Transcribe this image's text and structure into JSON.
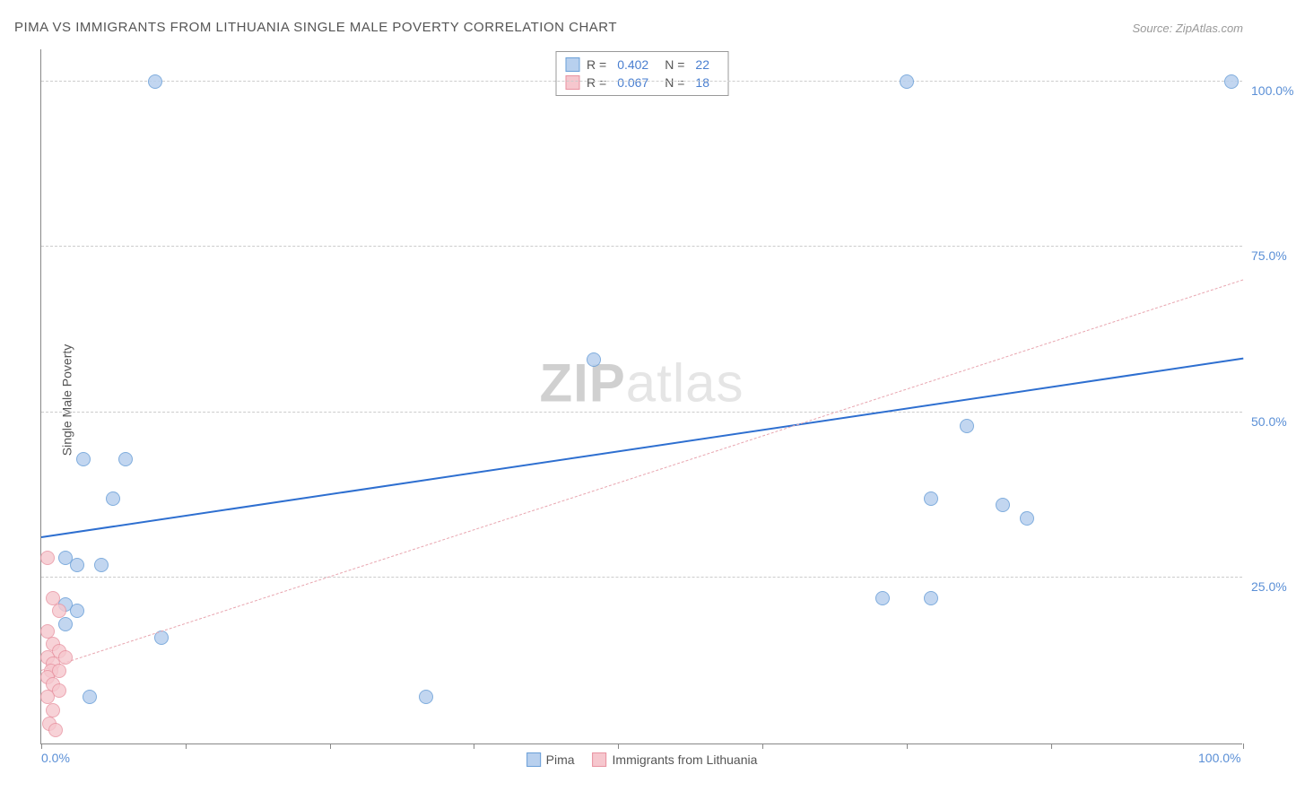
{
  "chart": {
    "type": "scatter",
    "title": "PIMA VS IMMIGRANTS FROM LITHUANIA SINGLE MALE POVERTY CORRELATION CHART",
    "source": "Source: ZipAtlas.com",
    "y_axis_label": "Single Male Poverty",
    "watermark": "ZIPatlas",
    "background_color": "#ffffff",
    "grid_color": "#cccccc",
    "axis_color": "#888888",
    "xlim": [
      0,
      100
    ],
    "ylim": [
      0,
      105
    ],
    "y_ticks": [
      {
        "value": 25,
        "label": "25.0%"
      },
      {
        "value": 50,
        "label": "50.0%"
      },
      {
        "value": 75,
        "label": "75.0%"
      },
      {
        "value": 100,
        "label": "100.0%"
      }
    ],
    "x_tick_positions": [
      0,
      12,
      24,
      36,
      48,
      60,
      72,
      84,
      100
    ],
    "x_labels": [
      {
        "value": 0,
        "label": "0.0%"
      },
      {
        "value": 100,
        "label": "100.0%"
      }
    ],
    "series": [
      {
        "name": "Pima",
        "color_fill": "#b8d0ee",
        "color_stroke": "#6a9fd8",
        "marker_radius": 8,
        "marker_opacity": 0.85,
        "trend": {
          "x1": 0,
          "y1": 31,
          "x2": 100,
          "y2": 58,
          "stroke": "#2e6fd0",
          "width": 2.5,
          "dash": false
        },
        "R": "0.402",
        "N": "22",
        "points": [
          [
            9.5,
            100
          ],
          [
            72,
            100
          ],
          [
            99,
            100
          ],
          [
            3.5,
            43
          ],
          [
            7,
            43
          ],
          [
            6,
            37
          ],
          [
            46,
            58
          ],
          [
            77,
            48
          ],
          [
            74,
            37
          ],
          [
            80,
            36
          ],
          [
            82,
            34
          ],
          [
            70,
            22
          ],
          [
            74,
            22
          ],
          [
            2,
            28
          ],
          [
            3,
            27
          ],
          [
            5,
            27
          ],
          [
            2,
            21
          ],
          [
            3,
            20
          ],
          [
            2,
            18
          ],
          [
            10,
            16
          ],
          [
            4,
            7
          ],
          [
            32,
            7
          ]
        ]
      },
      {
        "name": "Immigrants from Lithuania",
        "color_fill": "#f6c7ce",
        "color_stroke": "#e892a0",
        "marker_radius": 8,
        "marker_opacity": 0.8,
        "trend": {
          "x1": 0,
          "y1": 11,
          "x2": 100,
          "y2": 70,
          "stroke": "#e8a5af",
          "width": 1.2,
          "dash": true
        },
        "R": "0.067",
        "N": "18",
        "points": [
          [
            0.5,
            28
          ],
          [
            1,
            22
          ],
          [
            1.5,
            20
          ],
          [
            0.5,
            17
          ],
          [
            1,
            15
          ],
          [
            1.5,
            14
          ],
          [
            0.5,
            13
          ],
          [
            1,
            12
          ],
          [
            2,
            13
          ],
          [
            0.8,
            11
          ],
          [
            1.5,
            11
          ],
          [
            0.5,
            10
          ],
          [
            1,
            9
          ],
          [
            1.5,
            8
          ],
          [
            0.5,
            7
          ],
          [
            1,
            5
          ],
          [
            0.7,
            3
          ],
          [
            1.2,
            2
          ]
        ]
      }
    ],
    "legend_labels": {
      "R": "R =",
      "N": "N ="
    },
    "bottom_legend": [
      "Pima",
      "Immigrants from Lithuania"
    ],
    "title_fontsize": 15,
    "label_fontsize": 14,
    "tick_color": "#5a8fd6"
  }
}
